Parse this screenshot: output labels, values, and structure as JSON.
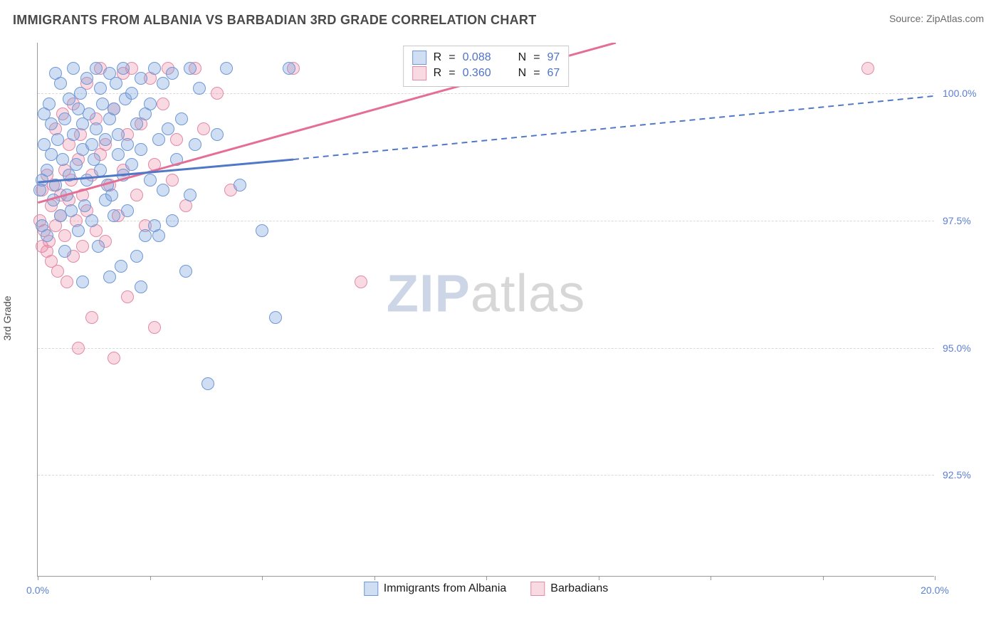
{
  "header": {
    "title": "IMMIGRANTS FROM ALBANIA VS BARBADIAN 3RD GRADE CORRELATION CHART",
    "source": "Source: ZipAtlas.com"
  },
  "chart": {
    "type": "scatter",
    "ylabel": "3rd Grade",
    "xlim": [
      0,
      20
    ],
    "ylim": [
      90.5,
      101
    ],
    "x_ticks": [
      0,
      2.5,
      5,
      7.5,
      10,
      12.5,
      15,
      17.5,
      20
    ],
    "x_tick_labels": {
      "0": "0.0%",
      "20": "20.0%"
    },
    "y_ticks": [
      92.5,
      95.0,
      97.5,
      100.0
    ],
    "y_tick_labels": [
      "92.5%",
      "95.0%",
      "97.5%",
      "100.0%"
    ],
    "background_color": "#ffffff",
    "grid_color": "#d9d9d9",
    "axis_color": "#9a9a9a",
    "tick_label_color": "#5b7fd1",
    "label_color": "#4a4a4a",
    "title_fontsize": 18,
    "tick_fontsize": 14,
    "label_fontsize": 14,
    "watermark": {
      "zip": "ZIP",
      "atlas": "atlas"
    },
    "series": {
      "albania": {
        "label": "Immigrants from Albania",
        "color_fill": "rgba(120,160,220,0.35)",
        "color_stroke": "#6f98d6",
        "line_color": "#4f78c7",
        "r_value": "0.088",
        "n_value": "97",
        "regression_solid": {
          "x1": 0,
          "y1": 98.25,
          "x2": 5.7,
          "y2": 98.7
        },
        "regression_dashed": {
          "x1": 5.7,
          "y1": 98.7,
          "x2": 20,
          "y2": 99.95
        },
        "points": [
          [
            0.05,
            98.1
          ],
          [
            0.1,
            98.3
          ],
          [
            0.1,
            97.4
          ],
          [
            0.15,
            99.0
          ],
          [
            0.15,
            99.6
          ],
          [
            0.2,
            98.5
          ],
          [
            0.2,
            97.2
          ],
          [
            0.25,
            99.8
          ],
          [
            0.3,
            98.8
          ],
          [
            0.3,
            99.4
          ],
          [
            0.35,
            97.9
          ],
          [
            0.4,
            100.4
          ],
          [
            0.4,
            98.2
          ],
          [
            0.45,
            99.1
          ],
          [
            0.5,
            100.2
          ],
          [
            0.5,
            97.6
          ],
          [
            0.55,
            98.7
          ],
          [
            0.6,
            99.5
          ],
          [
            0.6,
            96.9
          ],
          [
            0.65,
            98.0
          ],
          [
            0.7,
            99.9
          ],
          [
            0.7,
            98.4
          ],
          [
            0.75,
            97.7
          ],
          [
            0.8,
            100.5
          ],
          [
            0.8,
            99.2
          ],
          [
            0.85,
            98.6
          ],
          [
            0.9,
            99.7
          ],
          [
            0.9,
            97.3
          ],
          [
            0.95,
            100.0
          ],
          [
            1.0,
            98.9
          ],
          [
            1.0,
            99.4
          ],
          [
            1.05,
            97.8
          ],
          [
            1.1,
            100.3
          ],
          [
            1.1,
            98.3
          ],
          [
            1.15,
            99.6
          ],
          [
            1.2,
            99.0
          ],
          [
            1.2,
            97.5
          ],
          [
            1.25,
            98.7
          ],
          [
            1.3,
            100.5
          ],
          [
            1.3,
            99.3
          ],
          [
            1.35,
            97.0
          ],
          [
            1.4,
            98.5
          ],
          [
            1.4,
            100.1
          ],
          [
            1.45,
            99.8
          ],
          [
            1.5,
            97.9
          ],
          [
            1.5,
            99.1
          ],
          [
            1.55,
            98.2
          ],
          [
            1.6,
            100.4
          ],
          [
            1.6,
            99.5
          ],
          [
            1.65,
            98.0
          ],
          [
            1.7,
            99.7
          ],
          [
            1.7,
            97.6
          ],
          [
            1.75,
            100.2
          ],
          [
            1.8,
            98.8
          ],
          [
            1.8,
            99.2
          ],
          [
            1.85,
            96.6
          ],
          [
            1.9,
            100.5
          ],
          [
            1.9,
            98.4
          ],
          [
            1.95,
            99.9
          ],
          [
            2.0,
            97.7
          ],
          [
            2.0,
            99.0
          ],
          [
            2.1,
            98.6
          ],
          [
            2.1,
            100.0
          ],
          [
            2.2,
            99.4
          ],
          [
            2.2,
            96.8
          ],
          [
            2.3,
            100.3
          ],
          [
            2.3,
            98.9
          ],
          [
            2.4,
            99.6
          ],
          [
            2.4,
            97.2
          ],
          [
            2.5,
            99.8
          ],
          [
            2.5,
            98.3
          ],
          [
            2.6,
            100.5
          ],
          [
            2.6,
            97.4
          ],
          [
            2.7,
            99.1
          ],
          [
            2.8,
            98.1
          ],
          [
            2.8,
            100.2
          ],
          [
            2.9,
            99.3
          ],
          [
            3.0,
            97.5
          ],
          [
            3.0,
            100.4
          ],
          [
            3.1,
            98.7
          ],
          [
            3.2,
            99.5
          ],
          [
            3.3,
            96.5
          ],
          [
            3.4,
            100.5
          ],
          [
            3.4,
            98.0
          ],
          [
            3.5,
            99.0
          ],
          [
            3.6,
            100.1
          ],
          [
            3.8,
            94.3
          ],
          [
            4.0,
            99.2
          ],
          [
            4.2,
            100.5
          ],
          [
            4.5,
            98.2
          ],
          [
            5.0,
            97.3
          ],
          [
            5.3,
            95.6
          ],
          [
            5.6,
            100.5
          ],
          [
            2.3,
            96.2
          ],
          [
            1.6,
            96.4
          ],
          [
            2.7,
            97.2
          ],
          [
            1.0,
            96.3
          ]
        ]
      },
      "barbadian": {
        "label": "Barbadians",
        "color_fill": "rgba(235,130,160,0.30)",
        "color_stroke": "#e38aa6",
        "line_color": "#e56f94",
        "r_value": "0.360",
        "n_value": "67",
        "regression_solid": {
          "x1": 0,
          "y1": 97.85,
          "x2": 12.9,
          "y2": 101
        },
        "points": [
          [
            0.05,
            97.5
          ],
          [
            0.1,
            97.0
          ],
          [
            0.1,
            98.1
          ],
          [
            0.15,
            97.3
          ],
          [
            0.2,
            96.9
          ],
          [
            0.2,
            98.4
          ],
          [
            0.25,
            97.1
          ],
          [
            0.3,
            97.8
          ],
          [
            0.3,
            96.7
          ],
          [
            0.35,
            98.2
          ],
          [
            0.4,
            97.4
          ],
          [
            0.4,
            99.3
          ],
          [
            0.45,
            96.5
          ],
          [
            0.5,
            98.0
          ],
          [
            0.5,
            97.6
          ],
          [
            0.55,
            99.6
          ],
          [
            0.6,
            97.2
          ],
          [
            0.6,
            98.5
          ],
          [
            0.65,
            96.3
          ],
          [
            0.7,
            99.0
          ],
          [
            0.7,
            97.9
          ],
          [
            0.75,
            98.3
          ],
          [
            0.8,
            96.8
          ],
          [
            0.8,
            99.8
          ],
          [
            0.85,
            97.5
          ],
          [
            0.9,
            98.7
          ],
          [
            0.9,
            95.0
          ],
          [
            0.95,
            99.2
          ],
          [
            1.0,
            97.0
          ],
          [
            1.0,
            98.0
          ],
          [
            1.1,
            100.2
          ],
          [
            1.1,
            97.7
          ],
          [
            1.2,
            98.4
          ],
          [
            1.2,
            95.6
          ],
          [
            1.3,
            99.5
          ],
          [
            1.3,
            97.3
          ],
          [
            1.4,
            98.8
          ],
          [
            1.4,
            100.5
          ],
          [
            1.5,
            97.1
          ],
          [
            1.5,
            99.0
          ],
          [
            1.6,
            98.2
          ],
          [
            1.7,
            94.8
          ],
          [
            1.7,
            99.7
          ],
          [
            1.8,
            97.6
          ],
          [
            1.9,
            100.4
          ],
          [
            1.9,
            98.5
          ],
          [
            2.0,
            99.2
          ],
          [
            2.0,
            96.0
          ],
          [
            2.1,
            100.5
          ],
          [
            2.2,
            98.0
          ],
          [
            2.3,
            99.4
          ],
          [
            2.4,
            97.4
          ],
          [
            2.5,
            100.3
          ],
          [
            2.6,
            98.6
          ],
          [
            2.6,
            95.4
          ],
          [
            2.8,
            99.8
          ],
          [
            2.9,
            100.5
          ],
          [
            3.0,
            98.3
          ],
          [
            3.1,
            99.1
          ],
          [
            3.3,
            97.8
          ],
          [
            3.5,
            100.5
          ],
          [
            3.7,
            99.3
          ],
          [
            4.0,
            100.0
          ],
          [
            4.3,
            98.1
          ],
          [
            5.7,
            100.5
          ],
          [
            7.2,
            96.3
          ],
          [
            18.5,
            100.5
          ]
        ]
      }
    },
    "legend_top": {
      "row1": {
        "swatch": "albania",
        "R_label": "R",
        "R_val": "0.088",
        "N_label": "N",
        "N_val": "97"
      },
      "row2": {
        "swatch": "barbadian",
        "R_label": "R",
        "R_val": "0.360",
        "N_label": "N",
        "N_val": "67"
      }
    },
    "legend_bottom": {
      "item1": {
        "swatch": "albania",
        "label": "Immigrants from Albania"
      },
      "item2": {
        "swatch": "barbadian",
        "label": "Barbadians"
      }
    }
  }
}
